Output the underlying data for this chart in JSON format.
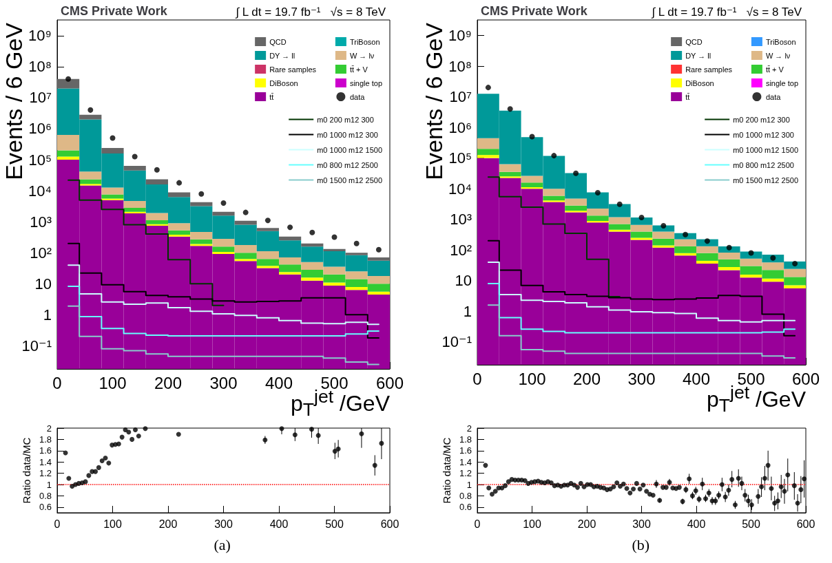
{
  "chart_data": [
    {
      "type": "bar",
      "title": "CMS Private Work",
      "subtitle": "∫ L dt = 19.7 fb⁻¹   √s = 8 TeV",
      "xlabel": "p$_{T}$$^{jet}$ /GeV",
      "ylabel": "Events / 6 GeV",
      "x": [
        20,
        60,
        100,
        140,
        180,
        220,
        260,
        300,
        340,
        380,
        420,
        460,
        500,
        540,
        580
      ],
      "stacked": true,
      "log": "y",
      "legend": "top right",
      "xlim": [
        0,
        600
      ],
      "xticks": [
        0,
        100,
        200,
        300,
        400,
        500,
        600
      ],
      "ylim": [
        0.018,
        3200000000
      ],
      "yticks": [
        {
          "value": 0.1,
          "label": "10⁻¹"
        },
        1,
        10,
        {
          "value": 100,
          "label": "10²"
        },
        {
          "value": 1000,
          "label": "10³"
        },
        {
          "value": 10000,
          "label": "10⁴"
        },
        {
          "value": 100000,
          "label": "10⁵"
        },
        {
          "value": 1000000,
          "label": "10⁶"
        },
        {
          "value": 10000000,
          "label": "10⁷"
        },
        {
          "value": 100000000,
          "label": "10⁸"
        },
        {
          "value": 1000000000,
          "label": "10⁹"
        }
      ],
      "series": [
        {
          "name": "tt̄",
          "color": "#990099",
          "values": [
            100000,
            14800,
            5000,
            1860,
            740,
            330,
            166,
            91,
            54,
            32,
            20,
            12.6,
            8.7,
            6.3,
            4.5
          ]
        },
        {
          "name": "single top",
          "color": "#cc00cc",
          "values": [
            null,
            null,
            null,
            null,
            null,
            null,
            null,
            null,
            null,
            null,
            null,
            null,
            null,
            null,
            null
          ]
        },
        {
          "name": "DiBoson",
          "color": "#ffff00",
          "values": [
            26000,
            1800,
            600,
            230,
            90,
            50,
            25,
            16,
            9,
            6,
            4,
            3.2,
            2.3,
            1.6,
            1.1
          ]
        },
        {
          "name": "tt̄ + V",
          "color": "#33cc33",
          "values": [
            74000,
            6800,
            2000,
            730,
            290,
            145,
            78,
            51,
            37,
            25,
            18,
            12.4,
            9,
            6.2,
            4.4
          ]
        },
        {
          "name": "Rare samples",
          "color": "#cc3366",
          "values": [
            null,
            null,
            null,
            null,
            null,
            null,
            null,
            null,
            null,
            null,
            null,
            null,
            null,
            null,
            null
          ]
        },
        {
          "name": "W → lν",
          "color": "#deb887",
          "values": [
            430000,
            18000,
            5000,
            1860,
            780,
            370,
            200,
            124,
            78,
            49,
            29,
            22,
            15.5,
            11,
            7.8
          ]
        },
        {
          "name": "DY → ll",
          "color": "#009999",
          "values": [
            19300000,
            1950000,
            146000,
            40000,
            14000,
            5400,
            2700,
            1300,
            620,
            390,
            180,
            108,
            77,
            58,
            38
          ]
        },
        {
          "name": "TriBoson",
          "color": "#00aaaa",
          "values": [
            null,
            null,
            null,
            null,
            null,
            null,
            null,
            null,
            null,
            null,
            null,
            null,
            null,
            null,
            null
          ]
        },
        {
          "name": "QCD",
          "color": "#666666",
          "values": [
            19900000,
            820000,
            81000,
            18400,
            7600,
            2600,
            1100,
            500,
            280,
            130,
            80,
            42,
            20,
            17,
            15
          ]
        },
        {
          "name": "data",
          "type": "scatter",
          "marker": "circle",
          "color": "#000000",
          "x": [
            20,
            60,
            100,
            140,
            180,
            220,
            260,
            300,
            340,
            380,
            420,
            460,
            500,
            540,
            580
          ],
          "values": [
            40000000,
            4000000,
            500000,
            126000,
            47000,
            18000,
            7900,
            4000,
            2000,
            1100,
            660,
            450,
            320,
            200,
            126
          ]
        },
        {
          "name": "m0 200 m12 300",
          "type": "step",
          "color": "#003300",
          "x": [
            20,
            60,
            100,
            140,
            180,
            220,
            260,
            300
          ],
          "values": [
            22000,
            5000,
            2500,
            800,
            400,
            60,
            10,
            2
          ]
        },
        {
          "name": "m0 1000 m12 300",
          "type": "step",
          "color": "#000000",
          "x": [
            20,
            60,
            100,
            140,
            180,
            220,
            260,
            300,
            340,
            380,
            420,
            460,
            500,
            540,
            580
          ],
          "values": [
            200,
            22,
            9.3,
            5.6,
            4.2,
            3.8,
            3.2,
            2.8,
            2.6,
            2.7,
            2.8,
            3.5,
            3.5,
            1.0,
            0.18
          ]
        },
        {
          "name": "m0 1000 m12 1500",
          "type": "step",
          "color": "#ccffff",
          "x": [
            20,
            60,
            100,
            140,
            180,
            220,
            260,
            300,
            340,
            380,
            420,
            460,
            500,
            540,
            580
          ],
          "values": [
            40,
            4.7,
            2.6,
            2.2,
            2.4,
            1.7,
            1.3,
            1.07,
            0.95,
            0.8,
            0.65,
            0.54,
            0.52,
            0.57,
            0.49
          ]
        },
        {
          "name": "m0 800 m12 2500",
          "type": "step",
          "color": "#66ffff",
          "x": [
            20,
            60,
            100,
            140,
            180,
            220,
            260,
            300,
            340,
            380,
            420,
            460,
            500,
            540,
            580
          ],
          "values": [
            8.3,
            0.87,
            0.36,
            0.25,
            0.22,
            0.21,
            0.21,
            0.21,
            0.21,
            0.21,
            0.21,
            0.21,
            0.21,
            0.24,
            0.3
          ]
        },
        {
          "name": "m0 1500 m12 2500",
          "type": "step",
          "color": "#88cccc",
          "x": [
            20,
            60,
            100,
            140,
            180,
            220,
            260,
            300,
            340,
            380,
            420,
            460,
            500,
            540,
            580
          ],
          "values": [
            1.9,
            0.2,
            0.08,
            0.07,
            0.055,
            0.046,
            0.046,
            0.046,
            0.046,
            0.046,
            0.046,
            0.046,
            0.04,
            0.03,
            0.025
          ]
        }
      ]
    },
    {
      "type": "scatter",
      "ylabel": "Ratio data/MC",
      "color": "#000000",
      "marker": "circle",
      "annotations": [
        "(a)"
      ],
      "xlim": [
        0,
        600
      ],
      "xticks": [
        0,
        100,
        200,
        300,
        400,
        500,
        600
      ],
      "ylim": [
        0.5,
        2
      ],
      "yticks": [
        0.6,
        0.8,
        1,
        1.2,
        1.4,
        1.6,
        1.8,
        2
      ],
      "ref_lines": [
        {
          "axis": "y",
          "value": 1,
          "color": "#ff0000",
          "line_style": "dotted"
        }
      ],
      "x": [
        15,
        21,
        27,
        33,
        39,
        45,
        51,
        57,
        63,
        69,
        75,
        81,
        87,
        93,
        99,
        105,
        111,
        117,
        123,
        129,
        135,
        141,
        147,
        159,
        219,
        375,
        405,
        429,
        459,
        471,
        501,
        507,
        549,
        573,
        585
      ],
      "values": [
        1.56,
        1.11,
        0.97,
        1.0,
        1.02,
        1.03,
        1.05,
        1.16,
        1.23,
        1.23,
        1.3,
        1.42,
        1.47,
        1.38,
        1.7,
        1.71,
        1.72,
        1.84,
        1.97,
        1.93,
        1.8,
        1.97,
        1.86,
        1.99,
        1.89,
        1.79,
        1.99,
        1.88,
        1.98,
        1.87,
        1.59,
        1.63,
        1.9,
        1.34,
        1.73
      ],
      "errors": [
        null,
        null,
        null,
        null,
        null,
        null,
        null,
        null,
        null,
        null,
        null,
        null,
        null,
        null,
        null,
        null,
        null,
        null,
        null,
        null,
        null,
        null,
        null,
        null,
        null,
        [
          1.72,
          1.86
        ],
        [
          1.89,
          2.0
        ],
        [
          1.77,
          2.0
        ],
        [
          1.83,
          2.0
        ],
        [
          1.72,
          2.0
        ],
        [
          1.45,
          1.74
        ],
        [
          1.48,
          1.79
        ],
        [
          1.65,
          2.0
        ],
        [
          1.16,
          1.52
        ],
        [
          1.45,
          2.0
        ]
      ]
    },
    {
      "type": "bar",
      "title": "CMS Private Work",
      "subtitle": "∫ L dt = 19.7 fb⁻¹   √s = 8 TeV",
      "xlabel": "p$_{T}$$^{jet}$ /GeV",
      "ylabel": "Events / 6 GeV",
      "x": [
        20,
        60,
        100,
        140,
        180,
        220,
        260,
        300,
        340,
        380,
        420,
        460,
        500,
        540,
        580
      ],
      "stacked": true,
      "log": "y",
      "legend": "top right",
      "xlim": [
        0,
        600
      ],
      "xticks": [
        0,
        100,
        200,
        300,
        400,
        500,
        600
      ],
      "ylim": [
        0.018,
        3200000000
      ],
      "yticks": [
        {
          "value": 0.1,
          "label": "10⁻¹"
        },
        1,
        10,
        {
          "value": 100,
          "label": "10²"
        },
        {
          "value": 1000,
          "label": "10³"
        },
        {
          "value": 10000,
          "label": "10⁴"
        },
        {
          "value": 100000,
          "label": "10⁵"
        },
        {
          "value": 1000000,
          "label": "10⁶"
        },
        {
          "value": 10000000,
          "label": "10⁷"
        },
        {
          "value": 100000000,
          "label": "10⁸"
        },
        {
          "value": 1000000000,
          "label": "10⁹"
        }
      ],
      "series": [
        {
          "name": "tt̄",
          "color": "#990099",
          "values": [
            100000,
            22400,
            10000,
            3700,
            1700,
            794,
            398,
            214,
            120,
            66,
            36,
            22,
            12.6,
            9.3,
            5.6
          ]
        },
        {
          "name": "single top",
          "color": "#ff00ff",
          "values": [
            null,
            null,
            null,
            null,
            null,
            null,
            null,
            null,
            null,
            null,
            null,
            null,
            null,
            null,
            null
          ]
        },
        {
          "name": "DiBoson",
          "color": "#ffff00",
          "values": [
            26000,
            2700,
            1200,
            450,
            210,
            97,
            59,
            37,
            21,
            13,
            8.4,
            5.8,
            3.2,
            2.4,
            1.5
          ]
        },
        {
          "name": "tt̄ + V",
          "color": "#33cc33",
          "values": [
            74000,
            10400,
            4600,
            1700,
            910,
            430,
            250,
            147,
            93,
            53,
            35,
            22,
            14.4,
            10.7,
            6.1
          ]
        },
        {
          "name": "Rare samples",
          "color": "#ff3333",
          "values": [
            null,
            null,
            null,
            null,
            null,
            null,
            null,
            null,
            null,
            null,
            null,
            null,
            null,
            null,
            null
          ]
        },
        {
          "name": "W → lν",
          "color": "#deb887",
          "values": [
            247000,
            27600,
            10500,
            4100,
            1970,
            920,
            470,
            263,
            164,
            92,
            53,
            33,
            22,
            17,
            11
          ]
        },
        {
          "name": "DY → ll",
          "color": "#009999",
          "values": [
            12100000,
            3480000,
            452000,
            107000,
            27600,
            5350,
            1990,
            487,
            233,
            131,
            92,
            49,
            37,
            31,
            18
          ]
        },
        {
          "name": "TriBoson",
          "color": "#3399ff",
          "values": [
            null,
            null,
            null,
            null,
            null,
            null,
            null,
            null,
            null,
            null,
            null,
            null,
            null,
            null,
            null
          ]
        },
        {
          "name": "QCD",
          "color": "#666666",
          "values": [
            null,
            null,
            null,
            null,
            null,
            null,
            null,
            null,
            null,
            null,
            null,
            null,
            null,
            null,
            null
          ]
        },
        {
          "name": "data",
          "type": "scatter",
          "marker": "circle",
          "color": "#000000",
          "x": [
            20,
            60,
            100,
            140,
            180,
            220,
            260,
            300,
            340,
            380,
            420,
            460,
            500,
            540,
            580
          ],
          "values": [
            20000000,
            4000000,
            500000,
            120000,
            32000,
            7400,
            3100,
            1150,
            620,
            320,
            195,
            120,
            80,
            55,
            36
          ]
        },
        {
          "name": "m0 200 m12 300",
          "type": "step",
          "color": "#003300",
          "x": [
            20,
            60,
            100,
            140,
            180,
            220,
            260
          ],
          "values": [
            24000,
            5500,
            2500,
            700,
            350,
            50,
            3
          ]
        },
        {
          "name": "m0 1000 m12 300",
          "type": "step",
          "color": "#000000",
          "x": [
            20,
            60,
            100,
            140,
            180,
            220,
            260,
            300,
            340,
            380,
            420,
            460,
            500,
            540,
            580
          ],
          "values": [
            200,
            22,
            7,
            4.3,
            3.5,
            3.1,
            2.8,
            2.5,
            2.4,
            2.5,
            2.7,
            3.3,
            3.1,
            0.8,
            0.16
          ]
        },
        {
          "name": "m0 1000 m12 1500",
          "type": "step",
          "color": "#ccffff",
          "x": [
            20,
            60,
            100,
            140,
            180,
            220,
            260,
            300,
            340,
            380,
            420,
            460,
            500,
            540,
            580
          ],
          "values": [
            40,
            3.5,
            2.3,
            2.1,
            1.9,
            1.4,
            1.1,
            0.96,
            0.9,
            0.85,
            0.6,
            0.5,
            0.45,
            0.5,
            0.5
          ]
        },
        {
          "name": "m0 800 m12 2500",
          "type": "step",
          "color": "#66ffff",
          "x": [
            20,
            60,
            100,
            140,
            180,
            220,
            260,
            300,
            340,
            380,
            420,
            460,
            500,
            540,
            580
          ],
          "values": [
            8,
            0.62,
            0.26,
            0.22,
            0.2,
            0.2,
            0.2,
            0.2,
            0.2,
            0.2,
            0.2,
            0.2,
            0.2,
            0.21,
            0.26
          ]
        },
        {
          "name": "m0 1500 m12 2500",
          "type": "step",
          "color": "#88cccc",
          "x": [
            20,
            60,
            100,
            140,
            180,
            220,
            260,
            300,
            340,
            380,
            420,
            460,
            500,
            540,
            580
          ],
          "values": [
            1.6,
            0.16,
            0.056,
            0.05,
            0.042,
            0.042,
            0.042,
            0.042,
            0.042,
            0.042,
            0.042,
            0.042,
            0.042,
            0.035,
            0.03
          ]
        }
      ]
    },
    {
      "type": "scatter",
      "ylabel": "Ratio data/MC",
      "color": "#000000",
      "marker": "circle",
      "annotations": [
        "(b)"
      ],
      "xlim": [
        0,
        600
      ],
      "xticks": [
        0,
        100,
        200,
        300,
        400,
        500,
        600
      ],
      "ylim": [
        0.5,
        2
      ],
      "yticks": [
        0.6,
        0.8,
        1,
        1.2,
        1.4,
        1.6,
        1.8,
        2
      ],
      "ref_lines": [
        {
          "axis": "y",
          "value": 1,
          "color": "#ff0000",
          "line_style": "dotted"
        }
      ],
      "x": [
        15,
        21,
        27,
        33,
        39,
        45,
        51,
        57,
        63,
        69,
        75,
        81,
        87,
        93,
        99,
        105,
        111,
        117,
        123,
        129,
        135,
        141,
        147,
        153,
        159,
        165,
        171,
        177,
        183,
        189,
        195,
        201,
        207,
        213,
        219,
        225,
        231,
        237,
        243,
        249,
        255,
        261,
        267,
        273,
        279,
        285,
        291,
        297,
        303,
        309,
        315,
        321,
        327,
        333,
        339,
        345,
        351,
        357,
        363,
        369,
        375,
        381,
        387,
        393,
        399,
        405,
        411,
        417,
        423,
        429,
        435,
        441,
        447,
        453,
        459,
        465,
        471,
        477,
        483,
        489,
        495,
        501,
        513,
        519,
        525,
        531,
        537,
        543,
        549,
        555,
        561,
        567,
        579,
        585,
        591,
        597
      ],
      "values": [
        1.34,
        0.94,
        0.83,
        0.88,
        0.94,
        0.94,
        0.98,
        1.05,
        1.09,
        1.08,
        1.08,
        1.08,
        1.07,
        1.02,
        1.04,
        1.05,
        1.06,
        1.04,
        1.03,
        1.05,
        1.03,
        0.98,
        0.99,
        0.97,
        0.99,
        0.99,
        1.02,
        0.99,
        0.95,
        1.02,
        0.96,
        1.0,
        1.0,
        0.96,
        0.97,
        0.95,
        0.94,
        0.91,
        0.92,
        0.96,
        1.03,
        0.97,
        1.01,
        0.93,
        0.85,
        0.92,
        1.02,
        0.92,
        0.99,
        0.88,
        0.83,
        0.81,
        1.01,
        0.72,
        0.95,
        0.95,
        1.04,
        0.94,
        0.93,
        0.95,
        0.7,
        0.91,
        1.1,
        0.8,
        0.89,
        0.74,
        1.01,
        0.75,
        0.85,
        0.71,
        0.71,
        0.81,
        1.0,
        0.78,
        0.9,
        1.09,
        0.64,
        1.11,
        1.02,
        0.81,
        0.71,
        0.64,
        0.79,
        0.96,
        1.11,
        1.34,
        0.93,
        0.67,
        0.71,
        0.96,
        0.88,
        1.17,
        0.98,
        0.67,
        0.91,
        1.1
      ],
      "errors": [
        null,
        null,
        null,
        null,
        null,
        null,
        null,
        null,
        null,
        null,
        null,
        null,
        null,
        null,
        null,
        null,
        null,
        null,
        null,
        null,
        null,
        null,
        null,
        null,
        null,
        null,
        null,
        null,
        null,
        null,
        null,
        null,
        null,
        null,
        null,
        null,
        null,
        null,
        null,
        null,
        null,
        null,
        null,
        null,
        null,
        null,
        null,
        null,
        null,
        null,
        null,
        null,
        [
          0.94,
          1.08
        ],
        [
          0.68,
          0.76
        ],
        null,
        null,
        [
          0.98,
          1.1
        ],
        null,
        null,
        null,
        [
          0.65,
          0.75
        ],
        [
          0.85,
          0.97
        ],
        [
          1.01,
          1.19
        ],
        [
          0.74,
          0.87
        ],
        [
          0.82,
          0.96
        ],
        [
          0.68,
          0.8
        ],
        [
          0.9,
          1.12
        ],
        [
          0.69,
          0.82
        ],
        [
          0.78,
          0.92
        ],
        [
          0.64,
          0.78
        ],
        [
          0.64,
          0.78
        ],
        [
          0.74,
          0.88
        ],
        [
          0.88,
          1.12
        ],
        [
          0.69,
          0.87
        ],
        [
          0.8,
          1.0
        ],
        [
          0.95,
          1.24
        ],
        [
          0.57,
          0.71
        ],
        [
          0.96,
          1.27
        ],
        [
          0.9,
          1.14
        ],
        [
          0.7,
          0.92
        ],
        [
          0.6,
          0.82
        ],
        [
          0.55,
          0.74
        ],
        [
          0.66,
          0.92
        ],
        [
          0.78,
          1.13
        ],
        [
          0.9,
          1.33
        ],
        [
          1.07,
          1.6
        ],
        [
          0.72,
          1.14
        ],
        [
          0.53,
          0.8
        ],
        [
          0.56,
          0.86
        ],
        [
          0.76,
          1.17
        ],
        [
          0.66,
          1.1
        ],
        [
          0.88,
          1.46
        ],
        [
          0.73,
          1.22
        ],
        [
          0.52,
          0.83
        ],
        [
          0.67,
          1.15
        ],
        [
          0.77,
          1.43
        ]
      ]
    }
  ]
}
